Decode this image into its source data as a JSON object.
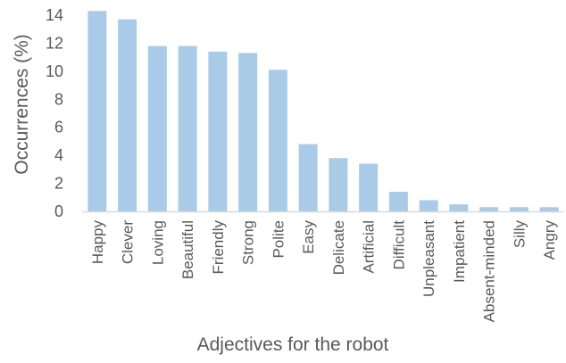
{
  "chart_data": {
    "type": "bar",
    "title": "",
    "xlabel": "Adjectives for the robot",
    "ylabel": "Occurrences (%)",
    "ylim": [
      0,
      14
    ],
    "yticks": [
      "0",
      "2",
      "4",
      "6",
      "8",
      "10",
      "12",
      "14"
    ],
    "grid": false,
    "categories": [
      "Happy",
      "Clever",
      "Loving",
      "Beautiful",
      "Friendly",
      "Strong",
      "Polite",
      "Easy",
      "Delicate",
      "Artificial",
      "Difficult",
      "Unpleasant",
      "Impatient",
      "Absent-minded",
      "Silly",
      "Angry"
    ],
    "values": [
      14.3,
      13.7,
      11.8,
      11.8,
      11.4,
      11.3,
      10.1,
      4.8,
      3.8,
      3.4,
      1.4,
      0.8,
      0.5,
      0.3,
      0.3,
      0.3
    ],
    "bar_color": "#a9cbe8",
    "axis_color": "#d9d9d9",
    "text_color": "#595959"
  }
}
